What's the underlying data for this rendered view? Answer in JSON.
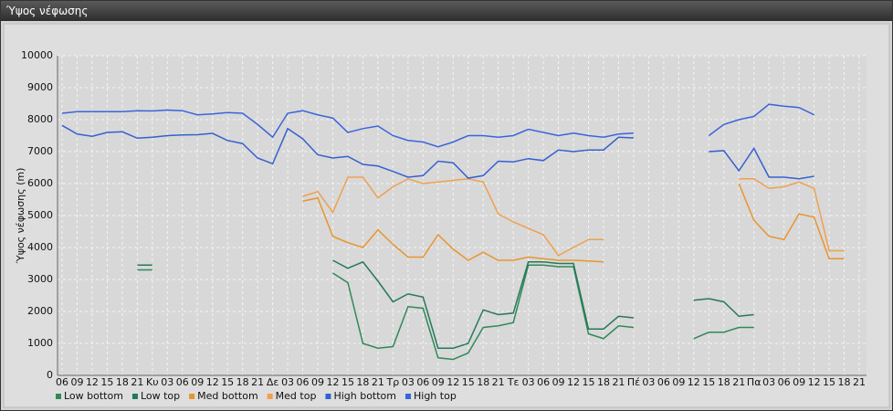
{
  "window_title": "Ύψος νέφωσης",
  "chart_data": {
    "type": "line",
    "ylabel": "Ύψος νέφωσης (m)",
    "categories": [
      "06",
      "09",
      "12",
      "15",
      "18",
      "21",
      "Κυ",
      "03",
      "06",
      "09",
      "12",
      "15",
      "18",
      "21",
      "Δε",
      "03",
      "06",
      "09",
      "12",
      "15",
      "18",
      "21",
      "Τρ",
      "03",
      "06",
      "09",
      "12",
      "15",
      "18",
      "21",
      "Τε",
      "03",
      "06",
      "09",
      "12",
      "15",
      "18",
      "21",
      "Πέ",
      "03",
      "06",
      "09",
      "12",
      "15",
      "18",
      "21",
      "Πα",
      "03",
      "06",
      "09",
      "12",
      "15",
      "18",
      "21"
    ],
    "ylim": [
      0,
      10000
    ],
    "yticks": [
      0,
      1000,
      2000,
      3000,
      4000,
      5000,
      6000,
      7000,
      8000,
      9000,
      10000
    ],
    "grid": true,
    "legend": "bottom",
    "series": [
      {
        "name": "Low bottom",
        "color": "#2f8a55",
        "values": [
          null,
          null,
          null,
          null,
          null,
          3300,
          3300,
          null,
          null,
          null,
          null,
          null,
          null,
          null,
          null,
          null,
          null,
          null,
          3200,
          2900,
          1000,
          850,
          900,
          2150,
          2100,
          550,
          500,
          700,
          1500,
          1550,
          1650,
          3450,
          3450,
          3400,
          3400,
          1300,
          1150,
          1550,
          1500,
          null,
          null,
          null,
          1150,
          1350,
          1350,
          1500,
          1500,
          null,
          null,
          null,
          null,
          null,
          null,
          null
        ]
      },
      {
        "name": "Low top",
        "color": "#25795a",
        "values": [
          null,
          null,
          null,
          null,
          null,
          3450,
          3450,
          null,
          null,
          null,
          null,
          null,
          null,
          null,
          null,
          null,
          null,
          null,
          3600,
          3350,
          3550,
          2950,
          2300,
          2550,
          2450,
          850,
          850,
          1000,
          2050,
          1900,
          1950,
          3550,
          3550,
          3500,
          3500,
          1450,
          1450,
          1850,
          1800,
          null,
          null,
          null,
          2350,
          2400,
          2300,
          1850,
          1900,
          null,
          null,
          null,
          null,
          null,
          null,
          null
        ]
      },
      {
        "name": "Med bottom",
        "color": "#e8952e",
        "values": [
          null,
          null,
          null,
          null,
          null,
          null,
          null,
          null,
          null,
          null,
          null,
          null,
          null,
          null,
          null,
          null,
          5450,
          5550,
          4350,
          4150,
          4000,
          4550,
          4100,
          3700,
          3700,
          4400,
          3950,
          3600,
          3850,
          3600,
          3600,
          3700,
          3650,
          3600,
          3600,
          3580,
          3550,
          null,
          null,
          null,
          null,
          null,
          null,
          null,
          null,
          6000,
          4850,
          4350,
          4250,
          5050,
          4950,
          3650,
          3650,
          null
        ]
      },
      {
        "name": "Med top",
        "color": "#f0a050",
        "values": [
          null,
          null,
          null,
          null,
          null,
          null,
          null,
          null,
          null,
          null,
          null,
          null,
          null,
          null,
          null,
          null,
          5600,
          5750,
          5100,
          6200,
          6200,
          5550,
          5900,
          6150,
          6000,
          6050,
          6100,
          6150,
          6050,
          5050,
          4800,
          4600,
          4400,
          3750,
          4000,
          4250,
          4250,
          null,
          null,
          null,
          null,
          null,
          null,
          null,
          null,
          6150,
          6150,
          5850,
          5900,
          6050,
          5850,
          3900,
          3900,
          null
        ]
      },
      {
        "name": "High bottom",
        "color": "#3560d0",
        "values": [
          7820,
          7550,
          7480,
          7600,
          7620,
          7420,
          7450,
          7500,
          7520,
          7530,
          7570,
          7350,
          7250,
          6800,
          6620,
          7720,
          7400,
          6900,
          6800,
          6850,
          6600,
          6550,
          6380,
          6200,
          6250,
          6700,
          6650,
          6170,
          6250,
          6700,
          6680,
          6780,
          6720,
          7050,
          7000,
          7050,
          7050,
          7450,
          7430,
          null,
          null,
          null,
          null,
          7000,
          7030,
          6400,
          7100,
          6200,
          6200,
          6150,
          6230,
          null,
          null,
          null
        ]
      },
      {
        "name": "High top",
        "color": "#3a64dc",
        "values": [
          8200,
          8250,
          8250,
          8250,
          8250,
          8280,
          8270,
          8300,
          8280,
          8150,
          8180,
          8220,
          8200,
          7850,
          7450,
          8200,
          8280,
          8150,
          8050,
          7600,
          7720,
          7800,
          7500,
          7350,
          7300,
          7150,
          7300,
          7500,
          7500,
          7450,
          7500,
          7700,
          7600,
          7500,
          7580,
          7500,
          7450,
          7550,
          7580,
          null,
          null,
          null,
          null,
          7500,
          7850,
          8000,
          8100,
          8480,
          8420,
          8380,
          8150,
          null,
          null,
          null
        ]
      }
    ]
  }
}
